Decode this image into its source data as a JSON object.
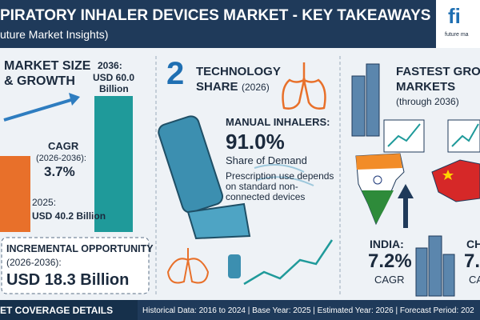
{
  "header": {
    "title": "PIRATORY INHALER DEVICES MARKET - KEY TAKEAWAYS",
    "subtitle": "uture Market Insights)",
    "logo": "fi",
    "logo_caption": "future ma"
  },
  "market_size": {
    "heading_1": "MARKET SIZE",
    "heading_2": "& GROWTH",
    "end_label": "2036:",
    "end_value": "USD 60.0",
    "end_unit": "Billion",
    "cagr_label": "CAGR",
    "cagr_period": "(2026-2036):",
    "cagr_value": "3.7%",
    "start_label": "2025:",
    "start_value": "USD 40.2 Billion",
    "opportunity_label": "INCREMENTAL OPPORTUNITY",
    "opportunity_period": "(2026-2036):",
    "opportunity_value": "USD 18.3 Billion"
  },
  "technology": {
    "number": "2",
    "heading_1": "TECHNOLOGY",
    "heading_2": "SHARE",
    "heading_year": "(2026)",
    "segment": "MANUAL INHALERS:",
    "share": "91.0%",
    "share_label": "Share of Demand",
    "note": "Prescription use depends on standard non-connected devices"
  },
  "fastest": {
    "heading_1": "FASTEST GROW",
    "heading_2": "MARKETS",
    "period": "(through 2036)",
    "india_label": "INDIA:",
    "india_value": "7.2%",
    "india_caption": "CAGR",
    "china_label": "CH",
    "china_value": "7.",
    "china_caption": "CA"
  },
  "footer": {
    "label": "ET COVERAGE DETAILS",
    "details": "Historical Data: 2016 to 2024 | Base Year: 2025 | Estimated Year: 2026 | Forecast Period: 202"
  }
}
